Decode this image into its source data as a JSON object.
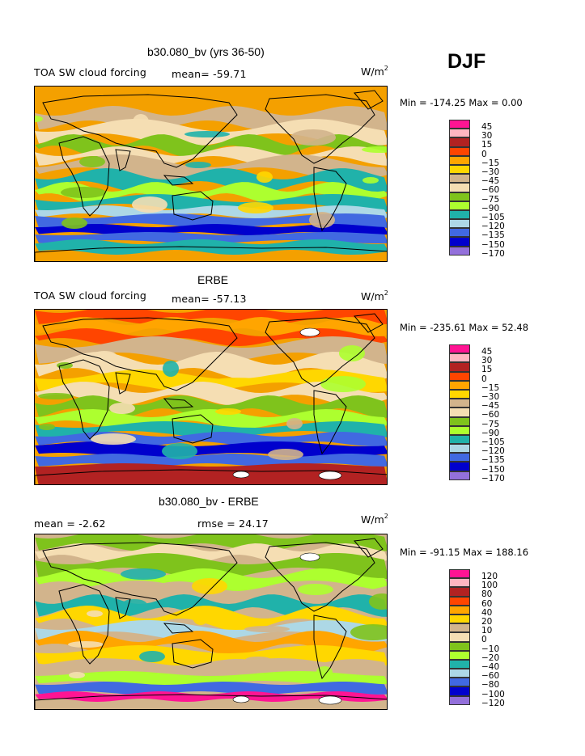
{
  "season": "DJF",
  "units_base": "W/m",
  "units_exp": "2",
  "panels": [
    {
      "title": "b30.080_bv (yrs 36-50)",
      "left_label": "TOA SW cloud forcing",
      "stat_label": "mean= -59.71",
      "minmax": "Min = -174.25 Max =    0.00",
      "scale": "default",
      "bg_color": "#F4A000"
    },
    {
      "title": "ERBE",
      "left_label": "TOA SW cloud forcing",
      "stat_label": "mean= -57.13",
      "minmax": "Min = -235.61 Max =  52.48",
      "scale": "default",
      "bg_color": "#F4A000"
    },
    {
      "title": "b30.080_bv - ERBE",
      "left_label": "mean =  -2.62",
      "stat_label": "rmse =  24.17",
      "minmax": "Min = -91.15 Max = 188.16",
      "scale": "difference",
      "bg_color": "#D2B48C"
    }
  ],
  "colorbars": {
    "default": {
      "levels": [
        "45",
        "30",
        "15",
        "0",
        "-15",
        "-30",
        "-45",
        "-60",
        "-75",
        "-90",
        "-105",
        "-120",
        "-135",
        "-150",
        "-170"
      ],
      "colors": [
        "#FF1493",
        "#FFB6C1",
        "#B22222",
        "#FF4500",
        "#FFA500",
        "#FFD700",
        "#D2B48C",
        "#F5DEB3",
        "#7FC31C",
        "#ADFF2F",
        "#20B2AA",
        "#ADD8E6",
        "#4169E1",
        "#0000CD",
        "#9370DB"
      ]
    },
    "difference": {
      "levels": [
        "120",
        "100",
        "80",
        "60",
        "40",
        "20",
        "10",
        "0",
        "-10",
        "-20",
        "-40",
        "-60",
        "-80",
        "-100",
        "-120"
      ],
      "colors": [
        "#FF1493",
        "#FFB6C1",
        "#B22222",
        "#FF4500",
        "#FFA500",
        "#FFD700",
        "#D2B48C",
        "#F5DEB3",
        "#7FC31C",
        "#ADFF2F",
        "#20B2AA",
        "#ADD8E6",
        "#4169E1",
        "#0000CD",
        "#9370DB"
      ]
    }
  }
}
